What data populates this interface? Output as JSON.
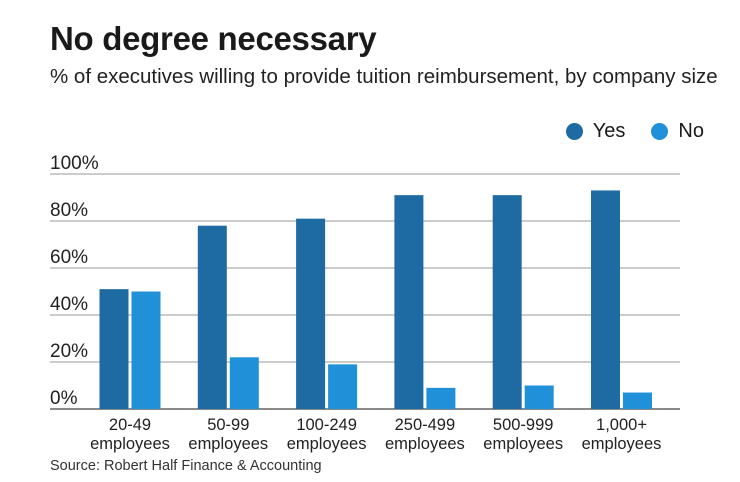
{
  "title": "No degree necessary",
  "subtitle": "% of executives willing to provide tuition reimbursement, by company size",
  "source": "Source: Robert Half Finance & Accounting",
  "colors": {
    "yes": "#1e6aa3",
    "no": "#2090d8",
    "grid": "#9a9a9a",
    "axis": "#444444"
  },
  "chart_data": {
    "type": "bar",
    "categories": [
      [
        "20-49",
        "employees"
      ],
      [
        "50-99",
        "employees"
      ],
      [
        "100-249",
        "employees"
      ],
      [
        "250-499",
        "employees"
      ],
      [
        "500-999",
        "employees"
      ],
      [
        "1,000+",
        "employees"
      ]
    ],
    "series": [
      {
        "name": "Yes",
        "values": [
          51,
          78,
          81,
          91,
          91,
          93
        ]
      },
      {
        "name": "No",
        "values": [
          50,
          22,
          19,
          9,
          10,
          7
        ]
      }
    ],
    "ylim": [
      0,
      100
    ],
    "yticks": [
      "0%",
      "20%",
      "40%",
      "60%",
      "80%",
      "100%"
    ],
    "ytick_values": [
      0,
      20,
      40,
      60,
      80,
      100
    ],
    "grid": true,
    "legend_position": "top-right"
  }
}
